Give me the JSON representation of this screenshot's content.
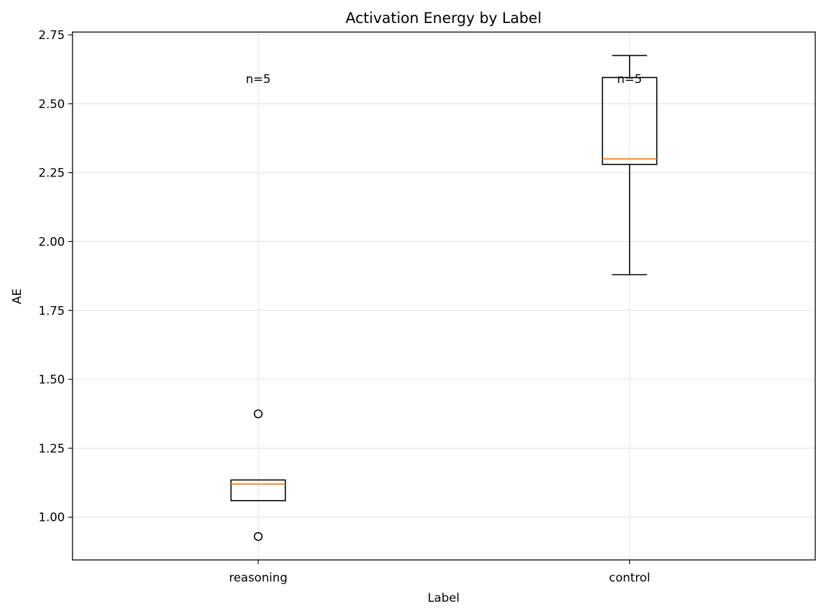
{
  "chart_data": {
    "type": "box",
    "title": "Activation Energy by Label",
    "xlabel": "Label",
    "ylabel": "AE",
    "ylim": [
      0.845,
      2.76
    ],
    "yticks": [
      1.0,
      1.25,
      1.5,
      1.75,
      2.0,
      2.25,
      2.5,
      2.75
    ],
    "ytick_labels": [
      "1.00",
      "1.25",
      "1.50",
      "1.75",
      "2.00",
      "2.25",
      "2.50",
      "2.75"
    ],
    "grid": true,
    "categories": [
      "reasoning",
      "control"
    ],
    "boxes": [
      {
        "name": "reasoning",
        "q1": 1.06,
        "median": 1.12,
        "q3": 1.135,
        "whisker_low": 1.06,
        "whisker_high": 1.135,
        "outliers": [
          1.375,
          0.93
        ],
        "annotation": "n=5"
      },
      {
        "name": "control",
        "q1": 2.28,
        "median": 2.3,
        "q3": 2.595,
        "whisker_low": 1.88,
        "whisker_high": 2.675,
        "outliers": [],
        "annotation": "n=5"
      }
    ],
    "annotation_y": 2.59,
    "colors": {
      "box": "#000000",
      "median": "#ff7f0e",
      "grid": "#e6e6e6",
      "background": "#ffffff"
    }
  }
}
